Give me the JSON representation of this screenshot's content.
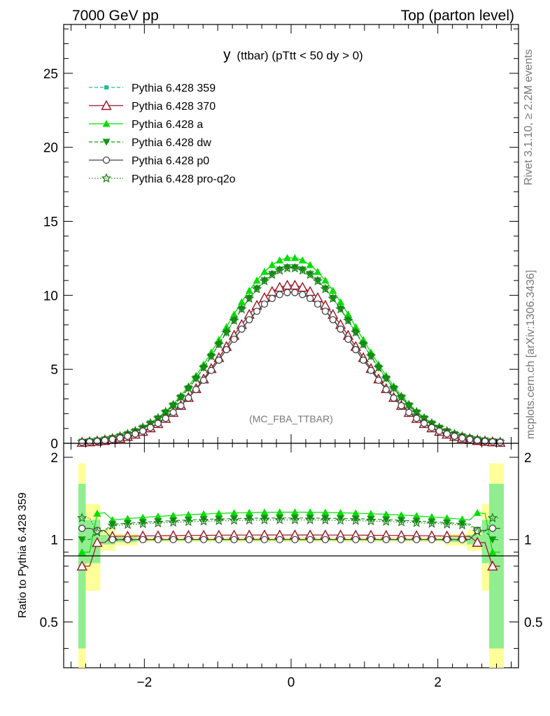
{
  "header": {
    "left": "7000 GeV pp",
    "right": "Top (parton level)"
  },
  "side_labels": {
    "rivet": "Rivet 3.1.10, ≥ 2.2M events",
    "mcplots": "mcplots.cern.ch [arXiv:1306.3436]"
  },
  "chart_data": [
    {
      "type": "line",
      "title": "y (ttbar) (pTtt < 50 dy > 0)",
      "title_main": "y",
      "title_rest": "(ttbar) (pTtt < 50 dy > 0)",
      "watermark": "(MC_FBA_TTBAR)",
      "xlim": [
        -3.1,
        3.1
      ],
      "ylim": [
        0,
        28.3
      ],
      "yticks": [
        0,
        5,
        10,
        15,
        20,
        25
      ],
      "ytick_labels": [
        "0",
        "5",
        "10",
        "15",
        "20",
        "25"
      ],
      "legend_position": "top-left",
      "series": [
        {
          "name": "Pythia 6.428 359",
          "color": "#1fbf8f",
          "marker": "square-filled",
          "line": "dashed",
          "peak": 10.25,
          "width": 0.98
        },
        {
          "name": "Pythia 6.428 370",
          "color": "#9b1020",
          "marker": "triangle-open",
          "line": "solid",
          "peak": 10.7,
          "width": 0.965
        },
        {
          "name": "Pythia 6.428 a",
          "color": "#00e000",
          "marker": "triangle-filled",
          "line": "solid",
          "peak": 12.55,
          "width": 0.99
        },
        {
          "name": "Pythia 6.428 dw",
          "color": "#119911",
          "marker": "triangle-down-filled",
          "line": "dashed",
          "peak": 11.9,
          "width": 0.995
        },
        {
          "name": "Pythia 6.428 p0",
          "color": "#444444",
          "marker": "circle-open",
          "line": "solid",
          "peak": 10.2,
          "width": 0.98
        },
        {
          "name": "Pythia 6.428 pro-q2o",
          "color": "#1a7a1a",
          "marker": "star-open",
          "line": "dotted",
          "peak": 11.85,
          "width": 1.0
        }
      ]
    },
    {
      "type": "line",
      "ylabel": "Ratio to Pythia 6.428 359",
      "xlim": [
        -3.1,
        3.1
      ],
      "ylim": [
        0.34,
        2.25
      ],
      "yticks": [
        0.5,
        1,
        2
      ],
      "ytick_labels": [
        "0.5",
        "1",
        "2"
      ],
      "xticks": [
        -2,
        0,
        2
      ],
      "xtick_labels": [
        "−2",
        "0",
        "2"
      ],
      "reference": 1,
      "ratio_levels": [
        {
          "name": "Pythia 6.428 370",
          "mid": 1.04
        },
        {
          "name": "Pythia 6.428 a",
          "mid": 1.26
        },
        {
          "name": "Pythia 6.428 dw",
          "mid": 1.2
        },
        {
          "name": "Pythia 6.428 p0",
          "mid": 1.0
        },
        {
          "name": "Pythia 6.428 pro-q2o",
          "mid": 1.18
        }
      ]
    }
  ]
}
